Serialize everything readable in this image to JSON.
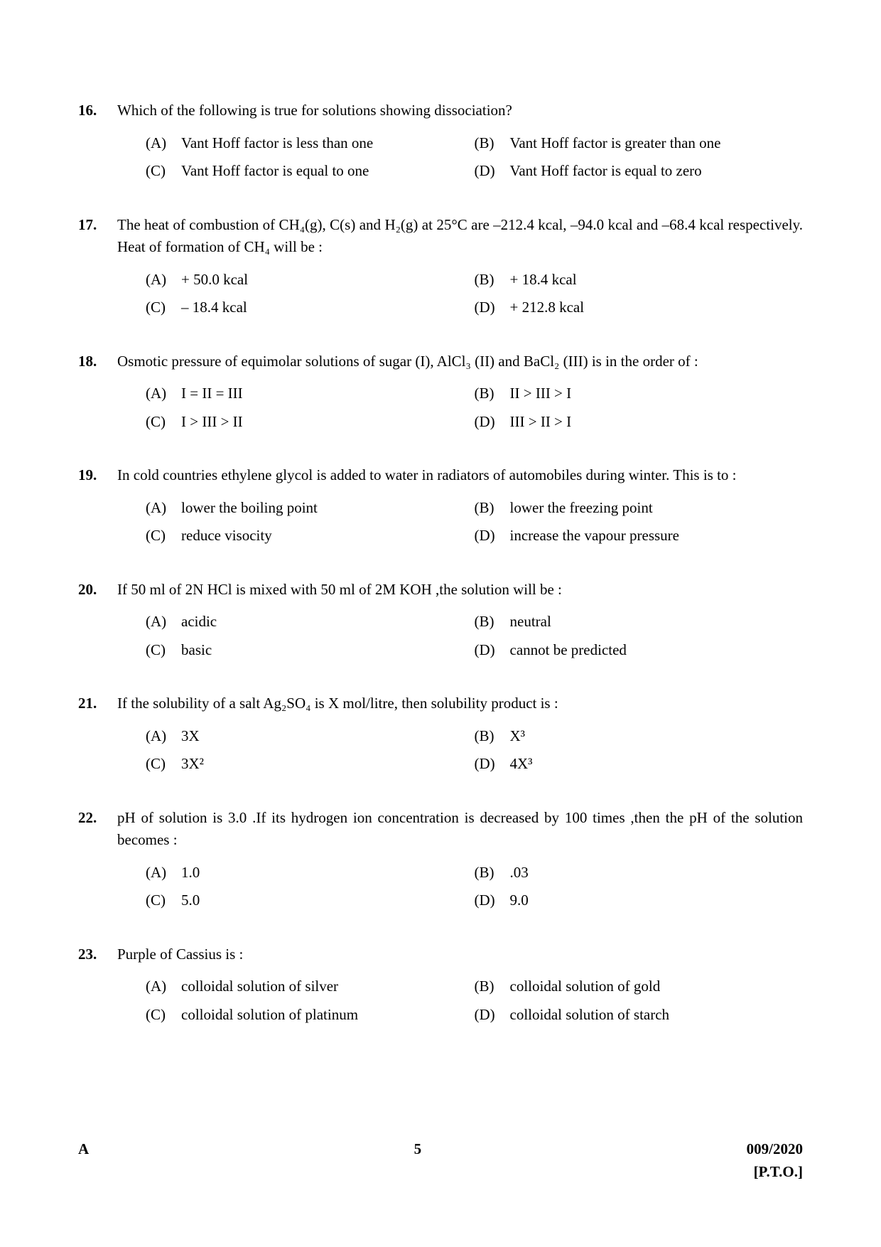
{
  "footer": {
    "set": "A",
    "page": "5",
    "code": "009/2020",
    "pto": "[P.T.O.]"
  },
  "questions": [
    {
      "num": "16.",
      "text": "Which of the following is true for solutions showing dissociation?",
      "opts": {
        "A": "Vant Hoff factor is less than one",
        "B": "Vant Hoff factor is greater than one",
        "C": "Vant Hoff factor is equal to one",
        "D": "Vant Hoff factor is equal to zero"
      }
    },
    {
      "num": "17.",
      "text": "The heat of combustion of CH₄(g), C(s) and H₂(g) at 25°C are –212.4 kcal, –94.0 kcal and –68.4 kcal respectively. Heat of formation of CH₄ will be :",
      "opts": {
        "A": "+ 50.0 kcal",
        "B": "+ 18.4 kcal",
        "C": "– 18.4 kcal",
        "D": "+ 212.8 kcal"
      }
    },
    {
      "num": "18.",
      "text": "Osmotic pressure of equimolar solutions of sugar (I), AlCl₃ (II) and BaCl₂ (III) is in the order of :",
      "opts": {
        "A": "I = II = III",
        "B": "II > III > I",
        "C": "I > III > II",
        "D": "III > II > I"
      }
    },
    {
      "num": "19.",
      "text": "In cold countries ethylene glycol is added to water in radiators of automobiles during winter. This is to :",
      "opts": {
        "A": "lower the boiling point",
        "B": "lower the freezing point",
        "C": "reduce visocity",
        "D": "increase the vapour pressure"
      }
    },
    {
      "num": "20.",
      "text": "If 50 ml of 2N HCl is mixed with 50 ml of 2M KOH ,the solution will be :",
      "opts": {
        "A": "acidic",
        "B": "neutral",
        "C": "basic",
        "D": "cannot be predicted"
      }
    },
    {
      "num": "21.",
      "text": "If the solubility of a salt Ag₂SO₄ is X mol/litre, then solubility product is :",
      "opts": {
        "A": "3X",
        "B": "X³",
        "C": "3X²",
        "D": "4X³"
      }
    },
    {
      "num": "22.",
      "text": "pH of solution is 3.0 .If its hydrogen ion concentration is decreased by 100 times ,then the pH of the solution becomes :",
      "opts": {
        "A": "1.0",
        "B": ".03",
        "C": "5.0",
        "D": "9.0"
      }
    },
    {
      "num": "23.",
      "text": "Purple of Cassius is :",
      "opts": {
        "A": "colloidal solution of silver",
        "B": "colloidal solution of gold",
        "C": "colloidal solution of platinum",
        "D": "colloidal solution of starch"
      }
    }
  ]
}
